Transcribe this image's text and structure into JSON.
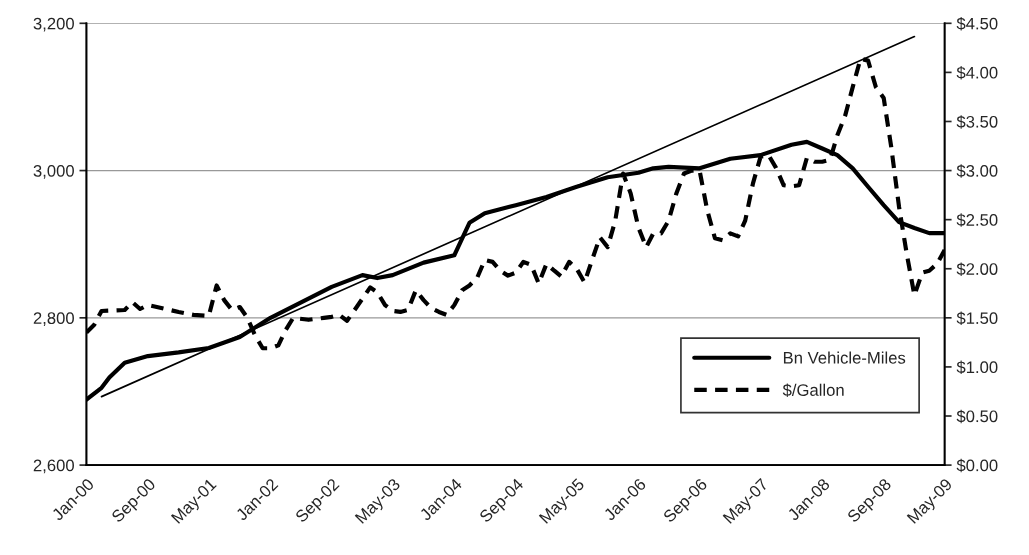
{
  "chart_data": {
    "type": "line",
    "legend": "bottom right",
    "grid": "y",
    "xlim": [
      "2000-01",
      "2009-05"
    ],
    "xticks": [
      {
        "value": "2000-01",
        "label": "Jan-00"
      },
      {
        "value": "2000-09",
        "label": "Sep-00"
      },
      {
        "value": "2001-05",
        "label": "May-01"
      },
      {
        "value": "2002-01",
        "label": "Jan-02"
      },
      {
        "value": "2002-09",
        "label": "Sep-02"
      },
      {
        "value": "2003-05",
        "label": "May-03"
      },
      {
        "value": "2004-01",
        "label": "Jan-04"
      },
      {
        "value": "2004-09",
        "label": "Sep-04"
      },
      {
        "value": "2005-05",
        "label": "May-05"
      },
      {
        "value": "2006-01",
        "label": "Jan-06"
      },
      {
        "value": "2006-09",
        "label": "Sep-06"
      },
      {
        "value": "2007-05",
        "label": "May-07"
      },
      {
        "value": "2008-01",
        "label": "Jan-08"
      },
      {
        "value": "2008-09",
        "label": "Sep-08"
      },
      {
        "value": "2009-05",
        "label": "May-09"
      }
    ],
    "ylim": [
      2600,
      3200
    ],
    "yticks": [
      {
        "value": 2600,
        "label": "2,600"
      },
      {
        "value": 2800,
        "label": "2,800"
      },
      {
        "value": 3000,
        "label": "3,000"
      },
      {
        "value": 3200,
        "label": "3,200"
      }
    ],
    "y2lim": [
      0,
      4.5
    ],
    "y2ticks": [
      {
        "value": 0,
        "label": "$0.00"
      },
      {
        "value": 0.5,
        "label": "$0.50"
      },
      {
        "value": 1,
        "label": "$1.00"
      },
      {
        "value": 1.5,
        "label": "$1.50"
      },
      {
        "value": 2,
        "label": "$2.00"
      },
      {
        "value": 2.5,
        "label": "$2.50"
      },
      {
        "value": 3,
        "label": "$3.00"
      },
      {
        "value": 3.5,
        "label": "$3.50"
      },
      {
        "value": 4,
        "label": "$4.00"
      },
      {
        "value": 4.5,
        "label": "$4.50"
      }
    ],
    "series": [
      {
        "name": "Bn Vehicle-Miles",
        "color": "#000000",
        "line_style": "solid",
        "x": [
          "2000-01",
          "2000-03",
          "2000-04",
          "2000-06",
          "2000-09",
          "2001-01",
          "2001-05",
          "2001-09",
          "2002-01",
          "2002-09",
          "2003-01",
          "2003-03",
          "2003-05",
          "2003-09",
          "2004-01",
          "2004-03",
          "2004-05",
          "2004-09",
          "2005-01",
          "2005-05",
          "2005-09",
          "2006-01",
          "2006-03",
          "2006-05",
          "2006-09",
          "2007-01",
          "2007-05",
          "2007-09",
          "2007-11",
          "2008-01",
          "2008-03",
          "2008-05",
          "2008-07",
          "2008-09",
          "2008-11",
          "2009-01",
          "2009-03",
          "2009-05"
        ],
        "values": [
          2689,
          2705,
          2719,
          2739,
          2748,
          2753,
          2759,
          2774,
          2800,
          2842,
          2858,
          2854,
          2858,
          2875,
          2885,
          2929,
          2942,
          2953,
          2964,
          2978,
          2991,
          2997,
          3003,
          3005,
          3003,
          3016,
          3021,
          3035,
          3039,
          3030,
          3021,
          3003,
          2978,
          2953,
          2930,
          2922,
          2915,
          2915
        ]
      },
      {
        "name": "$/Gallon",
        "color": "#000000",
        "line_style": "dashed",
        "axis": "y2",
        "x": [
          "2000-01",
          "2000-02",
          "2000-03",
          "2000-06",
          "2000-07",
          "2000-08",
          "2000-09",
          "2001-01",
          "2001-03",
          "2001-05",
          "2001-06",
          "2001-07",
          "2001-08",
          "2001-09",
          "2001-10",
          "2001-11",
          "2001-12",
          "2002-01",
          "2002-02",
          "2002-03",
          "2002-04",
          "2002-06",
          "2002-08",
          "2002-09",
          "2002-10",
          "2002-11",
          "2002-12",
          "2003-02",
          "2003-03",
          "2003-04",
          "2003-05",
          "2003-06",
          "2003-07",
          "2003-08",
          "2003-09",
          "2003-10",
          "2003-11",
          "2003-12",
          "2004-01",
          "2004-02",
          "2004-03",
          "2004-04",
          "2004-05",
          "2004-06",
          "2004-07",
          "2004-08",
          "2004-09",
          "2004-10",
          "2004-11",
          "2004-12",
          "2005-01",
          "2005-02",
          "2005-03",
          "2005-04",
          "2005-05",
          "2005-06",
          "2005-07",
          "2005-08",
          "2005-09",
          "2005-10",
          "2005-11",
          "2005-12",
          "2006-01",
          "2006-02",
          "2006-03",
          "2006-04",
          "2006-05",
          "2006-06",
          "2006-07",
          "2006-08",
          "2006-09",
          "2006-10",
          "2006-11",
          "2006-12",
          "2007-01",
          "2007-02",
          "2007-03",
          "2007-04",
          "2007-05",
          "2007-06",
          "2007-07",
          "2007-08",
          "2007-09",
          "2007-10",
          "2007-11",
          "2007-12",
          "2008-01",
          "2008-02",
          "2008-03",
          "2008-04",
          "2008-05",
          "2008-06",
          "2008-07",
          "2008-08",
          "2008-09",
          "2008-10",
          "2008-11",
          "2008-12",
          "2009-01",
          "2009-02",
          "2009-03",
          "2009-04",
          "2009-05"
        ],
        "values": [
          1.35,
          1.43,
          1.57,
          1.58,
          1.66,
          1.59,
          1.63,
          1.56,
          1.53,
          1.52,
          1.83,
          1.68,
          1.58,
          1.61,
          1.5,
          1.32,
          1.19,
          1.19,
          1.22,
          1.37,
          1.5,
          1.48,
          1.5,
          1.51,
          1.53,
          1.47,
          1.58,
          1.81,
          1.76,
          1.63,
          1.57,
          1.56,
          1.58,
          1.78,
          1.68,
          1.6,
          1.56,
          1.53,
          1.63,
          1.78,
          1.83,
          1.91,
          2.09,
          2.07,
          1.98,
          1.93,
          1.96,
          2.07,
          2.04,
          1.85,
          2.05,
          1.98,
          1.92,
          2.07,
          2.0,
          1.86,
          2.09,
          2.32,
          2.22,
          2.49,
          2.97,
          2.77,
          2.42,
          2.22,
          2.36,
          2.36,
          2.49,
          2.77,
          2.97,
          3.0,
          3.0,
          2.6,
          2.31,
          2.29,
          2.36,
          2.33,
          2.49,
          2.87,
          3.14,
          3.16,
          3.03,
          2.85,
          2.84,
          2.85,
          3.13,
          3.09,
          3.09,
          3.11,
          3.36,
          3.56,
          3.85,
          4.14,
          4.12,
          3.85,
          3.74,
          3.24,
          2.63,
          2.16,
          1.73,
          1.96,
          1.98,
          2.05,
          2.19
        ]
      },
      {
        "type": "line",
        "color": "#000000",
        "line_style": "solid",
        "x": [
          "2000-03",
          "2009-01"
        ],
        "values": [
          2693,
          3182
        ]
      }
    ]
  }
}
